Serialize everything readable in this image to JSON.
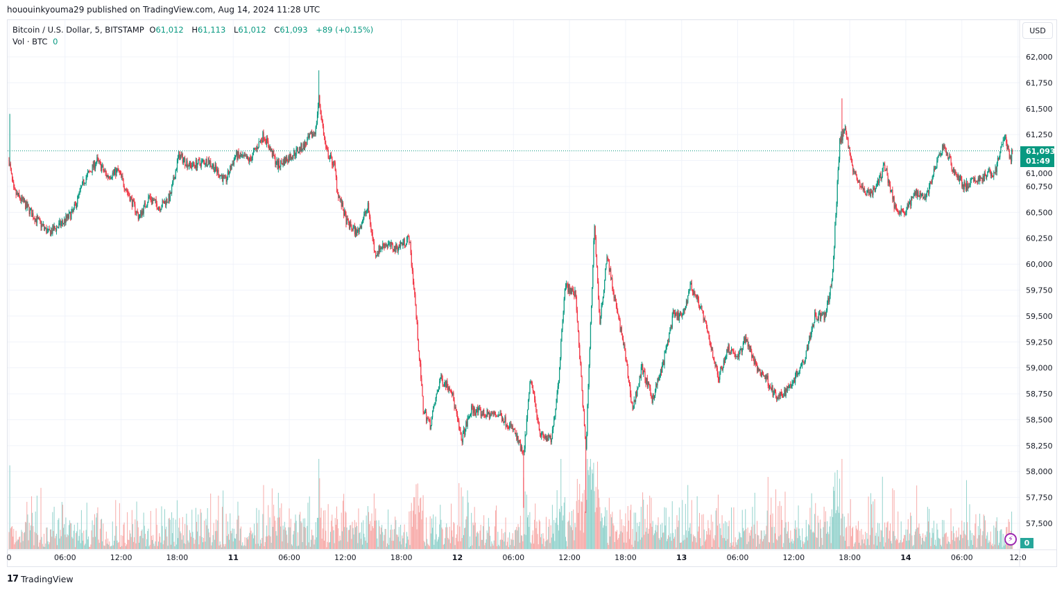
{
  "published": "hououinkyouma29 published on TradingView.com, Aug 14, 2024 11:28 UTC",
  "legend": {
    "symbol": "Bitcoin / U.S. Dollar, 5, BITSTAMP",
    "o_label": "O",
    "open": "61,012",
    "h_label": "H",
    "high": "61,113",
    "l_label": "L",
    "low": "61,012",
    "c_label": "C",
    "close": "61,093",
    "change": "+89 (+0.15%)",
    "vol_label": "Vol · BTC",
    "vol_value": "0"
  },
  "currency_button": "USD",
  "last_price": {
    "price": "61,093",
    "countdown": "01:49"
  },
  "volume_badge": "0",
  "lightning_icon": "lightning-icon",
  "brand": "TradingView",
  "colors": {
    "up": "#089981",
    "down": "#f23645",
    "vol_up": "#92d2cc",
    "vol_down": "#f7a9a7",
    "grid": "#f0f3fa"
  },
  "chart_data": {
    "type": "candlestick",
    "interval": "5",
    "ylim": [
      57400,
      62150
    ],
    "grid": true,
    "y_ticks": [
      "62,000",
      "61,750",
      "61,500",
      "61,250",
      "61,000",
      "60,750",
      "60,500",
      "60,250",
      "60,000",
      "59,750",
      "59,500",
      "59,250",
      "59,000",
      "58,750",
      "58,500",
      "58,250",
      "58,000",
      "57,750",
      "57,500"
    ],
    "x_ticks": [
      {
        "label": "0",
        "bold": false
      },
      {
        "label": "06:00",
        "bold": false
      },
      {
        "label": "12:00",
        "bold": false
      },
      {
        "label": "18:00",
        "bold": false
      },
      {
        "label": "11",
        "bold": true
      },
      {
        "label": "06:00",
        "bold": false
      },
      {
        "label": "12:00",
        "bold": false
      },
      {
        "label": "18:00",
        "bold": false
      },
      {
        "label": "12",
        "bold": true
      },
      {
        "label": "06:00",
        "bold": false
      },
      {
        "label": "12:00",
        "bold": false
      },
      {
        "label": "18:00",
        "bold": false
      },
      {
        "label": "13",
        "bold": true
      },
      {
        "label": "06:00",
        "bold": false
      },
      {
        "label": "12:00",
        "bold": false
      },
      {
        "label": "18:00",
        "bold": false
      },
      {
        "label": "14",
        "bold": true
      },
      {
        "label": "06:00",
        "bold": false
      },
      {
        "label": "12:0",
        "bold": false
      }
    ],
    "price_path": [
      [
        "08-10 00:00",
        61000
      ],
      [
        "08-10 00:30",
        60700
      ],
      [
        "08-10 01:30",
        60600
      ],
      [
        "08-10 02:45",
        60450
      ],
      [
        "08-10 04:15",
        60300
      ],
      [
        "08-10 05:45",
        60400
      ],
      [
        "08-10 06:50",
        60500
      ],
      [
        "08-10 08:00",
        60800
      ],
      [
        "08-10 09:25",
        61000
      ],
      [
        "08-10 10:30",
        60850
      ],
      [
        "08-10 11:40",
        60900
      ],
      [
        "08-10 13:10",
        60600
      ],
      [
        "08-10 13:55",
        60450
      ],
      [
        "08-10 15:00",
        60650
      ],
      [
        "08-10 16:05",
        60550
      ],
      [
        "08-10 17:15",
        60650
      ],
      [
        "08-10 18:10",
        61050
      ],
      [
        "08-10 19:25",
        60950
      ],
      [
        "08-10 21:20",
        61000
      ],
      [
        "08-10 23:10",
        60800
      ],
      [
        "08-11 00:15",
        61050
      ],
      [
        "08-11 01:45",
        61000
      ],
      [
        "08-11 03:15",
        61250
      ],
      [
        "08-11 04:45",
        60950
      ],
      [
        "08-11 06:15",
        61050
      ],
      [
        "08-11 07:40",
        61150
      ],
      [
        "08-11 08:50",
        61300
      ],
      [
        "08-11 09:10",
        61600
      ],
      [
        "08-11 09:55",
        61100
      ],
      [
        "08-11 10:50",
        60950
      ],
      [
        "08-11 11:10",
        60700
      ],
      [
        "08-11 12:10",
        60400
      ],
      [
        "08-11 13:15",
        60300
      ],
      [
        "08-11 14:25",
        60550
      ],
      [
        "08-11 15:10",
        60100
      ],
      [
        "08-11 16:15",
        60200
      ],
      [
        "08-11 17:20",
        60150
      ],
      [
        "08-11 18:50",
        60250
      ],
      [
        "08-11 19:25",
        59700
      ],
      [
        "08-11 19:55",
        59100
      ],
      [
        "08-11 20:20",
        58600
      ],
      [
        "08-11 21:05",
        58450
      ],
      [
        "08-11 22:10",
        58900
      ],
      [
        "08-11 23:20",
        58800
      ],
      [
        "08-12 00:25",
        58300
      ],
      [
        "08-12 01:30",
        58600
      ],
      [
        "08-12 03:00",
        58550
      ],
      [
        "08-12 04:30",
        58550
      ],
      [
        "08-12 06:00",
        58400
      ],
      [
        "08-12 07:05",
        58150
      ],
      [
        "08-12 07:50",
        58900
      ],
      [
        "08-12 08:55",
        58350
      ],
      [
        "08-12 10:05",
        58300
      ],
      [
        "08-12 10:50",
        58900
      ],
      [
        "08-12 11:30",
        59800
      ],
      [
        "08-12 12:40",
        59700
      ],
      [
        "08-12 13:45",
        58200
      ],
      [
        "08-12 14:40",
        60400
      ],
      [
        "08-12 15:15",
        59400
      ],
      [
        "08-12 16:00",
        60100
      ],
      [
        "08-12 16:45",
        59700
      ],
      [
        "08-12 17:50",
        59200
      ],
      [
        "08-12 18:45",
        58600
      ],
      [
        "08-12 19:45",
        59000
      ],
      [
        "08-12 20:50",
        58700
      ],
      [
        "08-12 21:55",
        59000
      ],
      [
        "08-12 23:05",
        59500
      ],
      [
        "08-13 00:10",
        59500
      ],
      [
        "08-13 00:55",
        59800
      ],
      [
        "08-13 02:00",
        59600
      ],
      [
        "08-13 03:10",
        59200
      ],
      [
        "08-13 03:55",
        58900
      ],
      [
        "08-13 05:00",
        59200
      ],
      [
        "08-13 06:05",
        59100
      ],
      [
        "08-13 06:50",
        59300
      ],
      [
        "08-13 08:00",
        59000
      ],
      [
        "08-13 09:05",
        58900
      ],
      [
        "08-13 10:10",
        58700
      ],
      [
        "08-13 10:55",
        58750
      ],
      [
        "08-13 12:05",
        58900
      ],
      [
        "08-13 13:10",
        59100
      ],
      [
        "08-13 14:15",
        59500
      ],
      [
        "08-13 15:25",
        59500
      ],
      [
        "08-13 16:10",
        59900
      ],
      [
        "08-13 16:55",
        61200
      ],
      [
        "08-13 17:35",
        61300
      ],
      [
        "08-13 18:20",
        60900
      ],
      [
        "08-13 19:30",
        60700
      ],
      [
        "08-13 20:35",
        60700
      ],
      [
        "08-13 21:45",
        60950
      ],
      [
        "08-13 22:50",
        60550
      ],
      [
        "08-13 23:55",
        60500
      ],
      [
        "08-14 01:05",
        60700
      ],
      [
        "08-14 02:10",
        60650
      ],
      [
        "08-14 03:15",
        60950
      ],
      [
        "08-14 04:00",
        61150
      ],
      [
        "08-14 05:10",
        60900
      ],
      [
        "08-14 06:15",
        60750
      ],
      [
        "08-14 07:20",
        60800
      ],
      [
        "08-14 08:30",
        60850
      ],
      [
        "08-14 09:35",
        60900
      ],
      [
        "08-14 10:35",
        61250
      ],
      [
        "08-14 11:10",
        61000
      ],
      [
        "08-14 11:25",
        61093
      ]
    ],
    "wick_extremes": [
      {
        "time": "08-10 00:05",
        "high": 61450
      },
      {
        "time": "08-11 09:10",
        "high": 61870
      },
      {
        "time": "08-12 07:05",
        "low": 57650
      },
      {
        "time": "08-12 13:45",
        "low": 57600
      },
      {
        "time": "08-13 17:10",
        "high": 61600
      }
    ]
  }
}
